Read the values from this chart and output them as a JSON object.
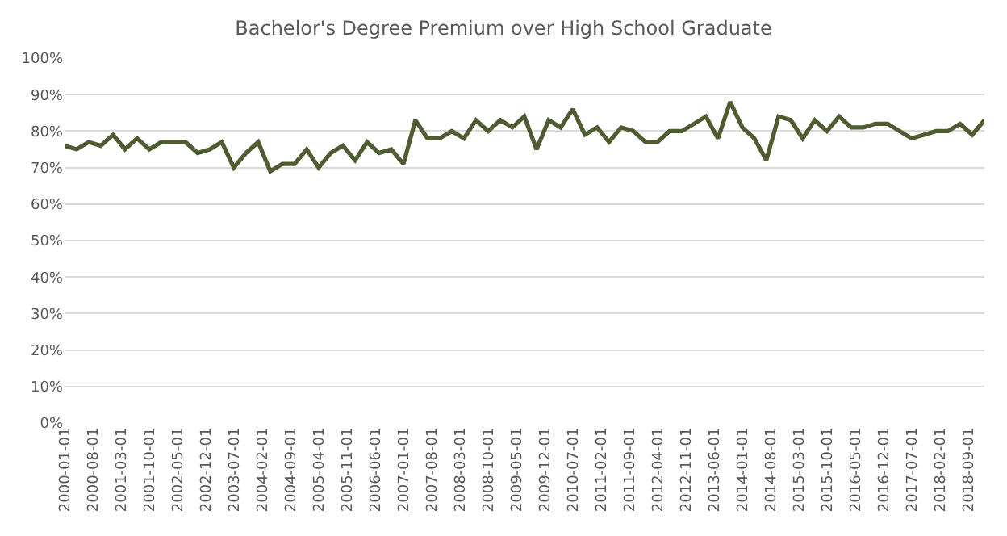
{
  "chart_data": {
    "type": "line",
    "title": "Bachelor's Degree Premium over High School Graduate",
    "x": [
      "2000-01",
      "2000-04",
      "2000-07",
      "2000-10",
      "2001-01",
      "2001-04",
      "2001-07",
      "2001-10",
      "2002-01",
      "2002-04",
      "2002-07",
      "2002-10",
      "2003-01",
      "2003-04",
      "2003-07",
      "2003-10",
      "2004-01",
      "2004-04",
      "2004-07",
      "2004-10",
      "2005-01",
      "2005-04",
      "2005-07",
      "2005-10",
      "2006-01",
      "2006-04",
      "2006-07",
      "2006-10",
      "2007-01",
      "2007-04",
      "2007-07",
      "2007-10",
      "2008-01",
      "2008-04",
      "2008-07",
      "2008-10",
      "2009-01",
      "2009-04",
      "2009-07",
      "2009-10",
      "2010-01",
      "2010-04",
      "2010-07",
      "2010-10",
      "2011-01",
      "2011-04",
      "2011-07",
      "2011-10",
      "2012-01",
      "2012-04",
      "2012-07",
      "2012-10",
      "2013-01",
      "2013-04",
      "2013-07",
      "2013-10",
      "2014-01",
      "2014-04",
      "2014-07",
      "2014-10",
      "2015-01",
      "2015-04",
      "2015-07",
      "2015-10",
      "2016-01",
      "2016-04",
      "2016-07",
      "2016-10",
      "2017-01",
      "2017-04",
      "2017-07",
      "2017-10",
      "2018-01",
      "2018-04",
      "2018-07",
      "2018-10",
      "2019-01"
    ],
    "series": [
      {
        "color": "#4f5b31",
        "values": [
          76,
          75,
          77,
          76,
          79,
          75,
          78,
          75,
          77,
          77,
          77,
          74,
          75,
          77,
          70,
          74,
          77,
          69,
          71,
          71,
          75,
          70,
          74,
          76,
          72,
          77,
          74,
          75,
          71,
          83,
          78,
          78,
          80,
          78,
          83,
          80,
          83,
          81,
          84,
          75,
          83,
          81,
          86,
          79,
          81,
          77,
          81,
          80,
          77,
          77,
          80,
          80,
          82,
          84,
          78,
          88,
          81,
          78,
          72,
          84,
          83,
          78,
          83,
          80,
          84,
          81,
          81,
          82,
          82,
          80,
          78,
          79,
          80,
          80,
          82,
          79,
          83
        ]
      }
    ],
    "xlim": [
      "2000-01-01",
      "2019-01-01"
    ],
    "xticks": [
      "2000-01-01",
      "2000-08-01",
      "2001-03-01",
      "2001-10-01",
      "2002-05-01",
      "2002-12-01",
      "2003-07-01",
      "2004-02-01",
      "2004-09-01",
      "2005-04-01",
      "2005-11-01",
      "2006-06-01",
      "2007-01-01",
      "2007-08-01",
      "2008-03-01",
      "2008-10-01",
      "2009-05-01",
      "2009-12-01",
      "2010-07-01",
      "2011-02-01",
      "2011-09-01",
      "2012-04-01",
      "2012-11-01",
      "2013-06-01",
      "2014-01-01",
      "2014-08-01",
      "2015-03-01",
      "2015-10-01",
      "2016-05-01",
      "2016-12-01",
      "2017-07-01",
      "2018-02-01",
      "2018-09-01"
    ],
    "ylim": [
      0,
      100
    ],
    "yticks": [
      {
        "value": 0,
        "label": "0%"
      },
      {
        "value": 10,
        "label": "10%"
      },
      {
        "value": 20,
        "label": "20%"
      },
      {
        "value": 30,
        "label": "30%"
      },
      {
        "value": 40,
        "label": "40%"
      },
      {
        "value": 50,
        "label": "50%"
      },
      {
        "value": 60,
        "label": "60%"
      },
      {
        "value": 70,
        "label": "70%"
      },
      {
        "value": 80,
        "label": "80%"
      },
      {
        "value": 90,
        "label": "90%"
      },
      {
        "value": 100,
        "label": "100%"
      }
    ],
    "grid": "y",
    "marker": "none",
    "line_style": "solid"
  }
}
